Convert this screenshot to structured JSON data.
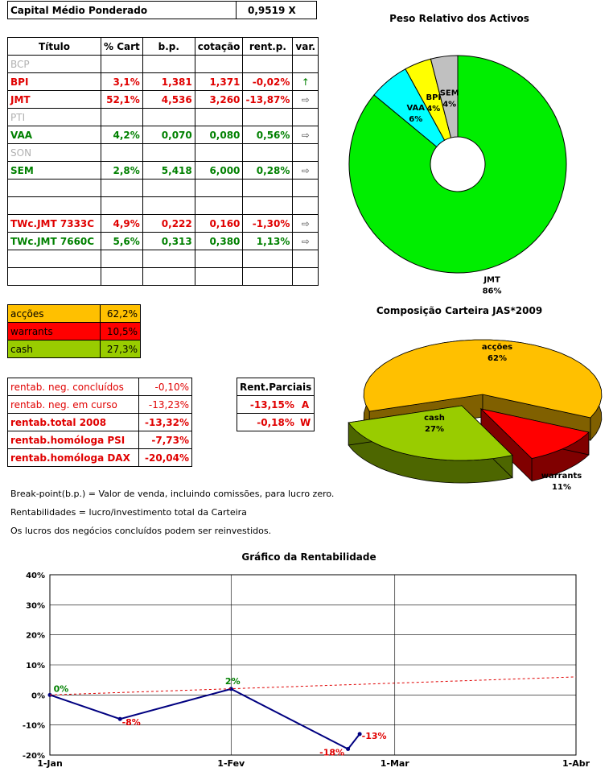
{
  "capital": {
    "label": "Capital Médio Ponderado",
    "value": "0,9519 X"
  },
  "portfolio_table": {
    "headers": [
      "Título",
      "% Cart",
      "b.p.",
      "cotação",
      "rent.p.",
      "var."
    ],
    "rows": [
      {
        "name": "BCP",
        "cart": "",
        "bp": "",
        "cot": "",
        "rent": "",
        "var": "",
        "style": "grey"
      },
      {
        "name": "BPI",
        "cart": "3,1%",
        "bp": "1,381",
        "cot": "1,371",
        "rent": "-0,02%",
        "var": "↑",
        "style": "red"
      },
      {
        "name": "JMT",
        "cart": "52,1%",
        "bp": "4,536",
        "cot": "3,260",
        "rent": "-13,87%",
        "var": "⇨",
        "style": "red"
      },
      {
        "name": "PTI",
        "cart": "",
        "bp": "",
        "cot": "",
        "rent": "",
        "var": "",
        "style": "grey"
      },
      {
        "name": "VAA",
        "cart": "4,2%",
        "bp": "0,070",
        "cot": "0,080",
        "rent": "0,56%",
        "var": "⇨",
        "style": "green"
      },
      {
        "name": "SON",
        "cart": "",
        "bp": "",
        "cot": "",
        "rent": "",
        "var": "",
        "style": "grey"
      },
      {
        "name": "SEM",
        "cart": "2,8%",
        "bp": "5,418",
        "cot": "6,000",
        "rent": "0,28%",
        "var": "⇨",
        "style": "green"
      },
      {
        "name": "",
        "cart": "",
        "bp": "",
        "cot": "",
        "rent": "",
        "var": "",
        "style": ""
      },
      {
        "name": "",
        "cart": "",
        "bp": "",
        "cot": "",
        "rent": "",
        "var": "",
        "style": ""
      },
      {
        "name": "TWc.JMT 7333C",
        "cart": "4,9%",
        "bp": "0,222",
        "cot": "0,160",
        "rent": "-1,30%",
        "var": "⇨",
        "style": "red"
      },
      {
        "name": "TWc.JMT 7660C",
        "cart": "5,6%",
        "bp": "0,313",
        "cot": "0,380",
        "rent": "1,13%",
        "var": "⇨",
        "style": "green"
      },
      {
        "name": "",
        "cart": "",
        "bp": "",
        "cot": "",
        "rent": "",
        "var": "",
        "style": ""
      },
      {
        "name": "",
        "cart": "",
        "bp": "",
        "cot": "",
        "rent": "",
        "var": "",
        "style": ""
      }
    ]
  },
  "composition": [
    {
      "label": "acções",
      "value": "62,2%",
      "color": "#ffc000",
      "text": "#000000"
    },
    {
      "label": "warrants",
      "value": "10,5%",
      "color": "#ff0000",
      "text": "#000000"
    },
    {
      "label": "cash",
      "value": "27,3%",
      "color": "#99cc00",
      "text": "#000000"
    }
  ],
  "returns": [
    {
      "label": "rentab. neg. concluídos",
      "value": "-0,10%",
      "bold": false
    },
    {
      "label": "rentab. neg. em curso",
      "value": "-13,23%",
      "bold": false
    },
    {
      "label": "rentab.total 2008",
      "value": "-13,32%",
      "bold": true
    },
    {
      "label": "rentab.homóloga PSI",
      "value": "-7,73%",
      "bold": true
    },
    {
      "label": "rentab.homóloga DAX",
      "value": "-20,04%",
      "bold": true
    }
  ],
  "partials": {
    "header": "Rent.Parciais",
    "rows": [
      {
        "value": "-13,15%",
        "code": "A"
      },
      {
        "value": "-0,18%",
        "code": "W"
      }
    ]
  },
  "notes": [
    "Break-point(b.p.) = Valor de venda, incluindo comissões, para lucro zero.",
    "Rentabilidades = lucro/investimento total da Carteira",
    "Os lucros dos negócios concluídos podem ser reinvestidos."
  ],
  "chart_data": [
    {
      "type": "pie",
      "subtype": "doughnut",
      "title": "Peso Relativo dos Activos",
      "labels": [
        "JMT",
        "VAA",
        "BPI",
        "SEM"
      ],
      "values": [
        86,
        6,
        4,
        4
      ],
      "value_labels": [
        "86%",
        "6%",
        "4%",
        "4%"
      ],
      "colors": [
        "#00ee00",
        "#00ffff",
        "#ffff00",
        "#c0c0c0"
      ]
    },
    {
      "type": "pie",
      "subtype": "3d-exploded",
      "title": "Composição Carteira JAS*2009",
      "labels": [
        "acções",
        "warrants",
        "cash"
      ],
      "values": [
        62,
        11,
        27
      ],
      "value_labels": [
        "62%",
        "11%",
        "27%"
      ],
      "colors": [
        "#ffc000",
        "#ff0000",
        "#99cc00"
      ]
    },
    {
      "type": "line",
      "title": "Gráfico da Rentabilidade",
      "x_ticks": [
        "1-Jan",
        "1-Fev",
        "1-Mar",
        "1-Abr"
      ],
      "ylim": [
        -0.2,
        0.4
      ],
      "y_ticks": [
        "-20%",
        "-10%",
        "0%",
        "10%",
        "20%",
        "30%",
        "40%"
      ],
      "series": [
        {
          "x": [
            "1-Jan",
            "13-Jan",
            "1-Fev",
            "21-Fev",
            "23-Fev"
          ],
          "y": [
            0.0,
            -0.08,
            0.02,
            -0.18,
            -0.13
          ],
          "point_labels": [
            "0%",
            "-8%",
            "2%",
            "-18%",
            "-13%"
          ],
          "color": "#000080"
        },
        {
          "x": [
            "1-Jan",
            "1-Abr"
          ],
          "y": [
            0.0,
            0.06
          ],
          "color": "#e00000",
          "dashed": true
        }
      ],
      "grid": true
    }
  ]
}
